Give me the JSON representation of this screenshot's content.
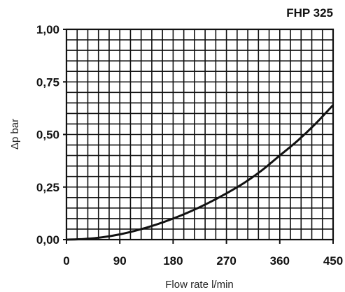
{
  "chart_data": {
    "type": "line",
    "title": "FHP 325",
    "xlabel": "Flow rate l/min",
    "ylabel": "Δp bar",
    "xlim": [
      0,
      450
    ],
    "ylim": [
      0,
      1
    ],
    "x_ticks": [
      "0",
      "90",
      "180",
      "270",
      "360",
      "450"
    ],
    "y_ticks": [
      "0,00",
      "0,25",
      "0,50",
      "0,75",
      "1,00"
    ],
    "grid": true,
    "series": [
      {
        "x": [
          0,
          30,
          60,
          90,
          120,
          150,
          180,
          210,
          240,
          270,
          300,
          330,
          360,
          390,
          420,
          450
        ],
        "values": [
          0.0,
          0.003,
          0.011,
          0.025,
          0.045,
          0.07,
          0.1,
          0.135,
          0.175,
          0.22,
          0.27,
          0.33,
          0.4,
          0.47,
          0.55,
          0.64
        ]
      }
    ],
    "colors": {
      "grid": "#111111",
      "line": "#111111"
    }
  }
}
